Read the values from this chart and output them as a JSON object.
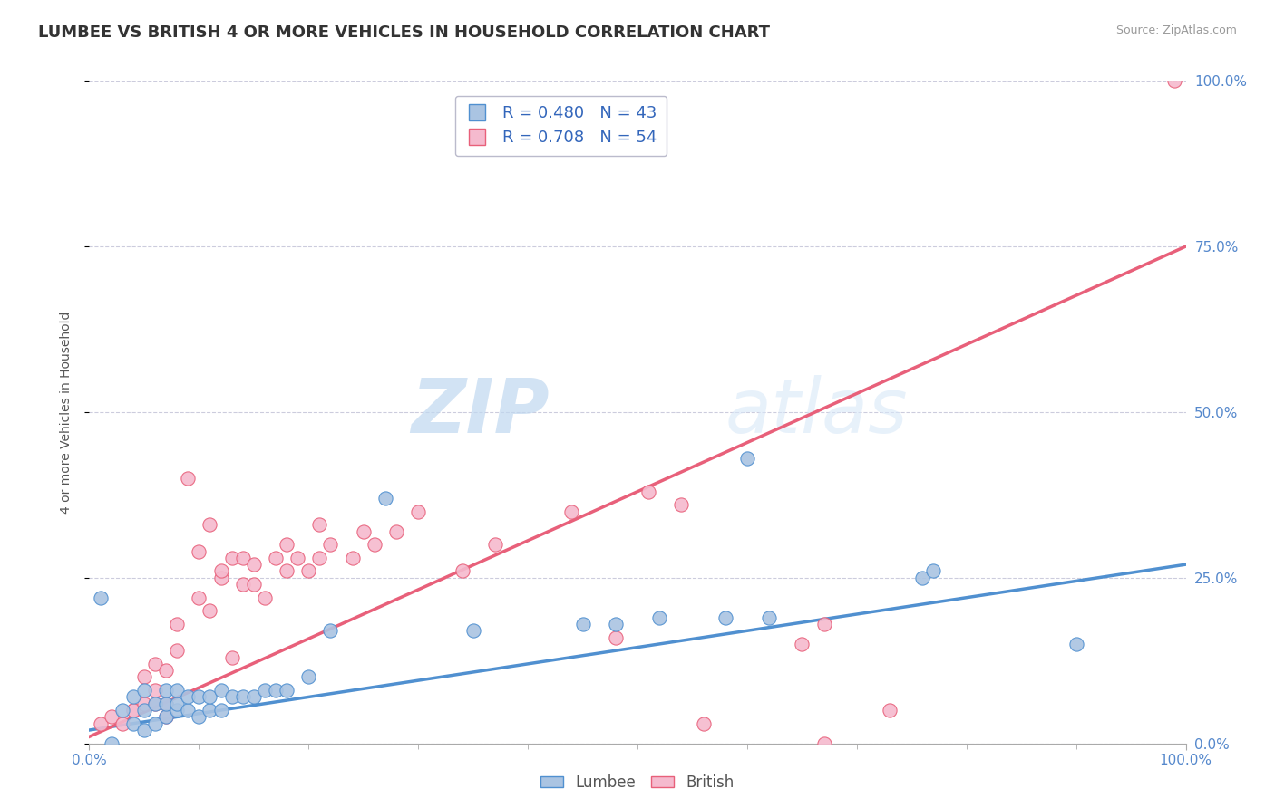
{
  "title": "LUMBEE VS BRITISH 4 OR MORE VEHICLES IN HOUSEHOLD CORRELATION CHART",
  "source_text": "Source: ZipAtlas.com",
  "ylabel": "4 or more Vehicles in Household",
  "xlim": [
    0,
    1.0
  ],
  "ylim": [
    0,
    1.0
  ],
  "ytick_positions": [
    0.0,
    0.25,
    0.5,
    0.75,
    1.0
  ],
  "ytick_labels": [
    "0.0%",
    "25.0%",
    "50.0%",
    "75.0%",
    "100.0%"
  ],
  "xtick_positions": [
    0.0,
    1.0
  ],
  "xtick_labels": [
    "0.0%",
    "100.0%"
  ],
  "lumbee_R": 0.48,
  "lumbee_N": 43,
  "british_R": 0.708,
  "british_N": 54,
  "lumbee_color": "#aac4e2",
  "british_color": "#f5bace",
  "lumbee_line_color": "#5090d0",
  "british_line_color": "#e8607a",
  "lumbee_scatter": [
    [
      0.01,
      0.22
    ],
    [
      0.02,
      0.0
    ],
    [
      0.03,
      0.05
    ],
    [
      0.04,
      0.03
    ],
    [
      0.04,
      0.07
    ],
    [
      0.05,
      0.02
    ],
    [
      0.05,
      0.05
    ],
    [
      0.05,
      0.08
    ],
    [
      0.06,
      0.03
    ],
    [
      0.06,
      0.06
    ],
    [
      0.07,
      0.04
    ],
    [
      0.07,
      0.06
    ],
    [
      0.07,
      0.08
    ],
    [
      0.08,
      0.05
    ],
    [
      0.08,
      0.06
    ],
    [
      0.08,
      0.08
    ],
    [
      0.09,
      0.05
    ],
    [
      0.09,
      0.07
    ],
    [
      0.1,
      0.04
    ],
    [
      0.1,
      0.07
    ],
    [
      0.11,
      0.05
    ],
    [
      0.11,
      0.07
    ],
    [
      0.12,
      0.05
    ],
    [
      0.12,
      0.08
    ],
    [
      0.13,
      0.07
    ],
    [
      0.14,
      0.07
    ],
    [
      0.15,
      0.07
    ],
    [
      0.16,
      0.08
    ],
    [
      0.17,
      0.08
    ],
    [
      0.18,
      0.08
    ],
    [
      0.2,
      0.1
    ],
    [
      0.22,
      0.17
    ],
    [
      0.27,
      0.37
    ],
    [
      0.35,
      0.17
    ],
    [
      0.45,
      0.18
    ],
    [
      0.48,
      0.18
    ],
    [
      0.52,
      0.19
    ],
    [
      0.58,
      0.19
    ],
    [
      0.6,
      0.43
    ],
    [
      0.62,
      0.19
    ],
    [
      0.76,
      0.25
    ],
    [
      0.77,
      0.26
    ],
    [
      0.9,
      0.15
    ]
  ],
  "british_scatter": [
    [
      0.01,
      0.03
    ],
    [
      0.02,
      0.04
    ],
    [
      0.03,
      0.03
    ],
    [
      0.04,
      0.05
    ],
    [
      0.04,
      0.05
    ],
    [
      0.05,
      0.06
    ],
    [
      0.05,
      0.1
    ],
    [
      0.06,
      0.06
    ],
    [
      0.06,
      0.08
    ],
    [
      0.06,
      0.12
    ],
    [
      0.07,
      0.04
    ],
    [
      0.07,
      0.06
    ],
    [
      0.07,
      0.11
    ],
    [
      0.08,
      0.14
    ],
    [
      0.08,
      0.18
    ],
    [
      0.09,
      0.4
    ],
    [
      0.1,
      0.22
    ],
    [
      0.1,
      0.29
    ],
    [
      0.11,
      0.33
    ],
    [
      0.11,
      0.2
    ],
    [
      0.12,
      0.25
    ],
    [
      0.12,
      0.26
    ],
    [
      0.13,
      0.13
    ],
    [
      0.13,
      0.28
    ],
    [
      0.14,
      0.24
    ],
    [
      0.14,
      0.28
    ],
    [
      0.15,
      0.24
    ],
    [
      0.15,
      0.27
    ],
    [
      0.16,
      0.22
    ],
    [
      0.17,
      0.28
    ],
    [
      0.18,
      0.26
    ],
    [
      0.18,
      0.3
    ],
    [
      0.19,
      0.28
    ],
    [
      0.2,
      0.26
    ],
    [
      0.21,
      0.28
    ],
    [
      0.21,
      0.33
    ],
    [
      0.22,
      0.3
    ],
    [
      0.24,
      0.28
    ],
    [
      0.25,
      0.32
    ],
    [
      0.26,
      0.3
    ],
    [
      0.28,
      0.32
    ],
    [
      0.3,
      0.35
    ],
    [
      0.34,
      0.26
    ],
    [
      0.37,
      0.3
    ],
    [
      0.44,
      0.35
    ],
    [
      0.48,
      0.16
    ],
    [
      0.51,
      0.38
    ],
    [
      0.54,
      0.36
    ],
    [
      0.56,
      0.03
    ],
    [
      0.65,
      0.15
    ],
    [
      0.67,
      0.18
    ],
    [
      0.67,
      0.0
    ],
    [
      0.73,
      0.05
    ],
    [
      0.99,
      1.0
    ]
  ],
  "watermark_zip": "ZIP",
  "watermark_atlas": "atlas",
  "background_color": "#ffffff",
  "grid_color": "#ccccdd",
  "title_fontsize": 13,
  "label_fontsize": 10,
  "tick_fontsize": 11,
  "legend_fontsize": 13
}
